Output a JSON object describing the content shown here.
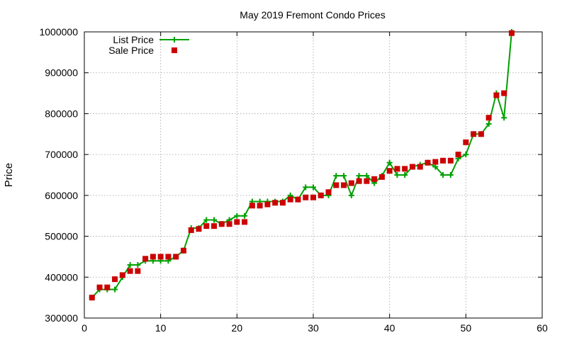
{
  "chart_data": {
    "type": "line",
    "title": "May 2019 Fremont Condo Prices",
    "xlabel": "",
    "ylabel": "Price",
    "xlim": [
      0,
      60
    ],
    "ylim": [
      300000,
      1000000
    ],
    "x_ticks": [
      0,
      10,
      20,
      30,
      40,
      50,
      60
    ],
    "y_ticks": [
      300000,
      400000,
      500000,
      600000,
      700000,
      800000,
      900000,
      1000000
    ],
    "grid": true,
    "legend_position": "top-left",
    "x": [
      1,
      2,
      3,
      4,
      5,
      6,
      7,
      8,
      9,
      10,
      11,
      12,
      13,
      14,
      15,
      16,
      17,
      18,
      19,
      20,
      21,
      22,
      23,
      24,
      25,
      26,
      27,
      28,
      29,
      30,
      31,
      32,
      33,
      34,
      35,
      36,
      37,
      38,
      39,
      40,
      41,
      42,
      43,
      44,
      45,
      46,
      47,
      48,
      49,
      50,
      51,
      52,
      53,
      54,
      55,
      56
    ],
    "series": [
      {
        "name": "List Price",
        "style": "line-cross",
        "color": "#00a000",
        "values": [
          350000,
          370000,
          370000,
          370000,
          400000,
          430000,
          430000,
          440000,
          440000,
          440000,
          440000,
          450000,
          465000,
          520000,
          520000,
          540000,
          540000,
          530000,
          540000,
          550000,
          550000,
          585000,
          585000,
          585000,
          585000,
          585000,
          600000,
          590000,
          620000,
          620000,
          600000,
          600000,
          648000,
          648000,
          600000,
          648000,
          648000,
          630000,
          648000,
          680000,
          650000,
          650000,
          670000,
          675000,
          680000,
          670000,
          650000,
          650000,
          690000,
          700000,
          750000,
          750000,
          775000,
          850000,
          790000,
          1000000
        ]
      },
      {
        "name": "Sale Price",
        "style": "square",
        "color": "#cc0000",
        "values": [
          350000,
          375000,
          375000,
          395000,
          405000,
          415000,
          415000,
          445000,
          450000,
          450000,
          450000,
          450000,
          465000,
          515000,
          518000,
          525000,
          525000,
          530000,
          530000,
          535000,
          535000,
          575000,
          575000,
          578000,
          582000,
          582000,
          590000,
          590000,
          595000,
          595000,
          600000,
          608000,
          625000,
          625000,
          630000,
          635000,
          635000,
          640000,
          645000,
          660000,
          665000,
          665000,
          670000,
          670000,
          680000,
          682000,
          685000,
          685000,
          700000,
          730000,
          750000,
          750000,
          790000,
          845000,
          850000,
          997000
        ]
      }
    ]
  }
}
